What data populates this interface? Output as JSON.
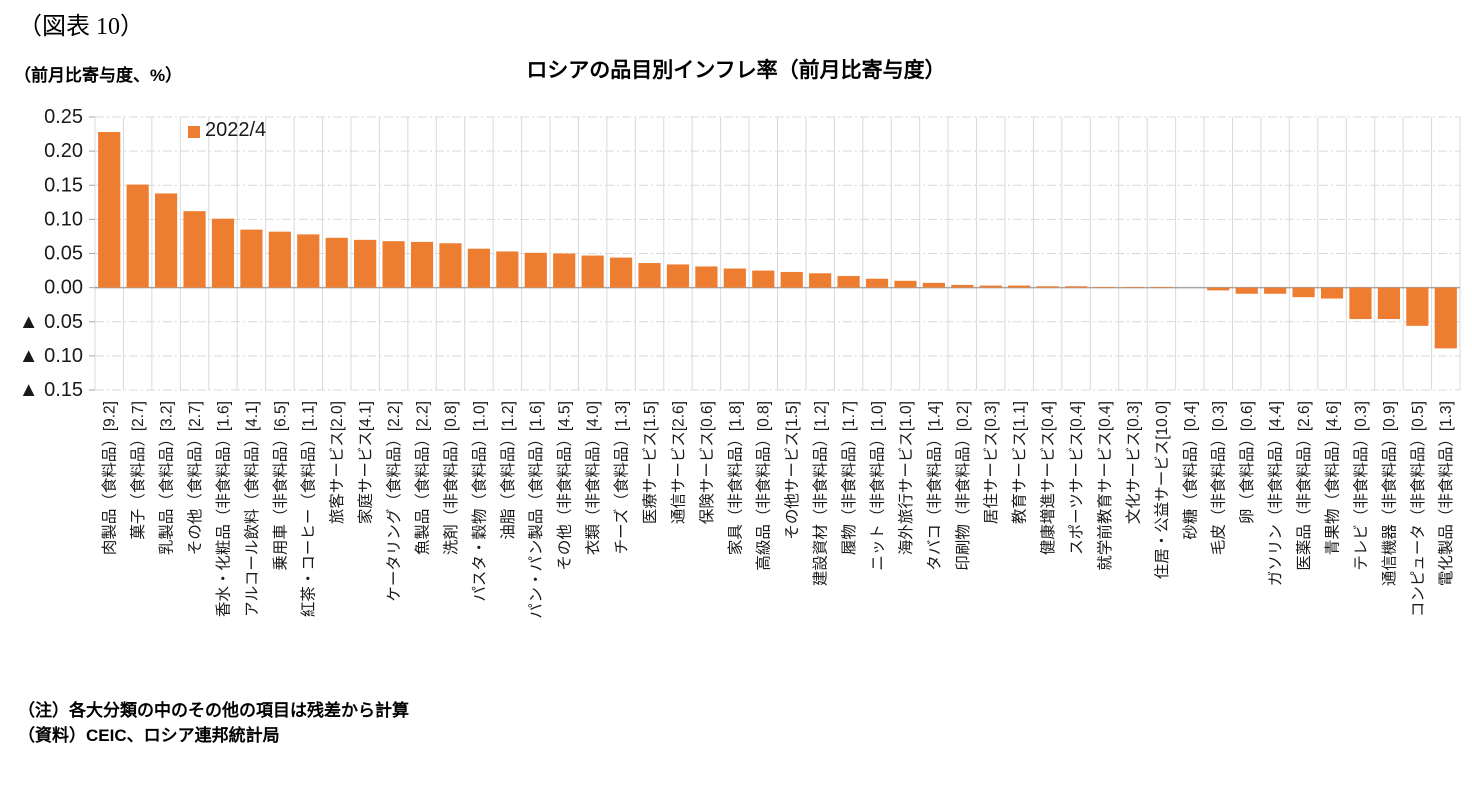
{
  "figure_label": "（図表 10）",
  "unit_label": "（前月比寄与度、%）",
  "notes": [
    "（注）各大分類の中のその他の項目は残差から計算",
    "（資料）CEIC、ロシア連邦統計局"
  ],
  "chart_data": {
    "type": "bar",
    "title": "ロシアの品目別インフレ率（前月比寄与度）",
    "legend": [
      "2022/4"
    ],
    "legend_position": "top-left-inside",
    "ylabel": "前月比寄与度、%",
    "ylim": [
      -0.15,
      0.25
    ],
    "grid": true,
    "y_ticks": [
      {
        "value": 0.25,
        "label": "0.25"
      },
      {
        "value": 0.2,
        "label": "0.20"
      },
      {
        "value": 0.15,
        "label": "0.15"
      },
      {
        "value": 0.1,
        "label": "0.10"
      },
      {
        "value": 0.05,
        "label": "0.05"
      },
      {
        "value": 0.0,
        "label": "0.00"
      },
      {
        "value": -0.05,
        "label": "▲ 0.05"
      },
      {
        "value": -0.1,
        "label": "▲ 0.10"
      },
      {
        "value": -0.15,
        "label": "▲ 0.15"
      }
    ],
    "categories": [
      "肉製品（食料品）[9.2]",
      "菓子（食料品）[2.7]",
      "乳製品（食料品）[3.2]",
      "その他（食料品）[2.7]",
      "香水・化粧品（非食料品）[1.6]",
      "アルコール飲料（食料品）[4.1]",
      "乗用車（非食料品）[6.5]",
      "紅茶・コーヒー（食料品）[1.1]",
      "旅客サービス[2.0]",
      "家庭サービス[4.1]",
      "ケータリング（食料品）[2.2]",
      "魚製品（食料品）[2.2]",
      "洗剤（非食料品）[0.8]",
      "パスタ・穀物（食料品）[1.0]",
      "油脂（食料品）[1.2]",
      "パン・パン製品（食料品）[1.6]",
      "その他（非食料品）[4.5]",
      "衣類（非食料品）[4.0]",
      "チーズ（食料品）[1.3]",
      "医療サービス[1.5]",
      "通信サービス[2.6]",
      "保険サービス[0.6]",
      "家具（非食料品）[1.8]",
      "高級品（非食料品）[0.8]",
      "その他サービス[1.5]",
      "建設資材（非食料品）[1.2]",
      "履物（非食料品）[1.7]",
      "ニット（非食料品）[1.0]",
      "海外旅行サービス[1.0]",
      "タバコ（非食料品）[1.4]",
      "印刷物（非食料品）[0.2]",
      "居住サービス[0.3]",
      "教育サービス[1.1]",
      "健康増進サービス[0.4]",
      "スポーツサービス[0.4]",
      "就学前教育サービス[0.4]",
      "文化サービス[0.3]",
      "住居・公益サービス[10.0]",
      "砂糖（食料品）[0.4]",
      "毛皮（非食料品）[0.3]",
      "卵（食料品）[0.6]",
      "ガソリン（非食料品）[4.4]",
      "医薬品（非食料品）[2.6]",
      "青果物（食料品）[4.6]",
      "テレビ（非食料品）[0.3]",
      "通信機器（非食料品）[0.9]",
      "コンピュータ（非食料品）[0.5]",
      "電化製品（非食料品）[1.3]"
    ],
    "values": [
      0.228,
      0.151,
      0.138,
      0.112,
      0.101,
      0.085,
      0.082,
      0.078,
      0.073,
      0.07,
      0.068,
      0.067,
      0.065,
      0.057,
      0.053,
      0.051,
      0.05,
      0.047,
      0.044,
      0.036,
      0.034,
      0.031,
      0.028,
      0.025,
      0.023,
      0.021,
      0.017,
      0.013,
      0.01,
      0.007,
      0.004,
      0.003,
      0.003,
      0.002,
      0.002,
      0.001,
      0.001,
      0.001,
      0.0,
      -0.004,
      -0.009,
      -0.009,
      -0.014,
      -0.016,
      -0.046,
      -0.046,
      -0.056,
      -0.089
    ],
    "colors": {
      "bar": "#ED7D31",
      "grid": "#D9D9D9",
      "axis": "#A6A6A6"
    }
  }
}
